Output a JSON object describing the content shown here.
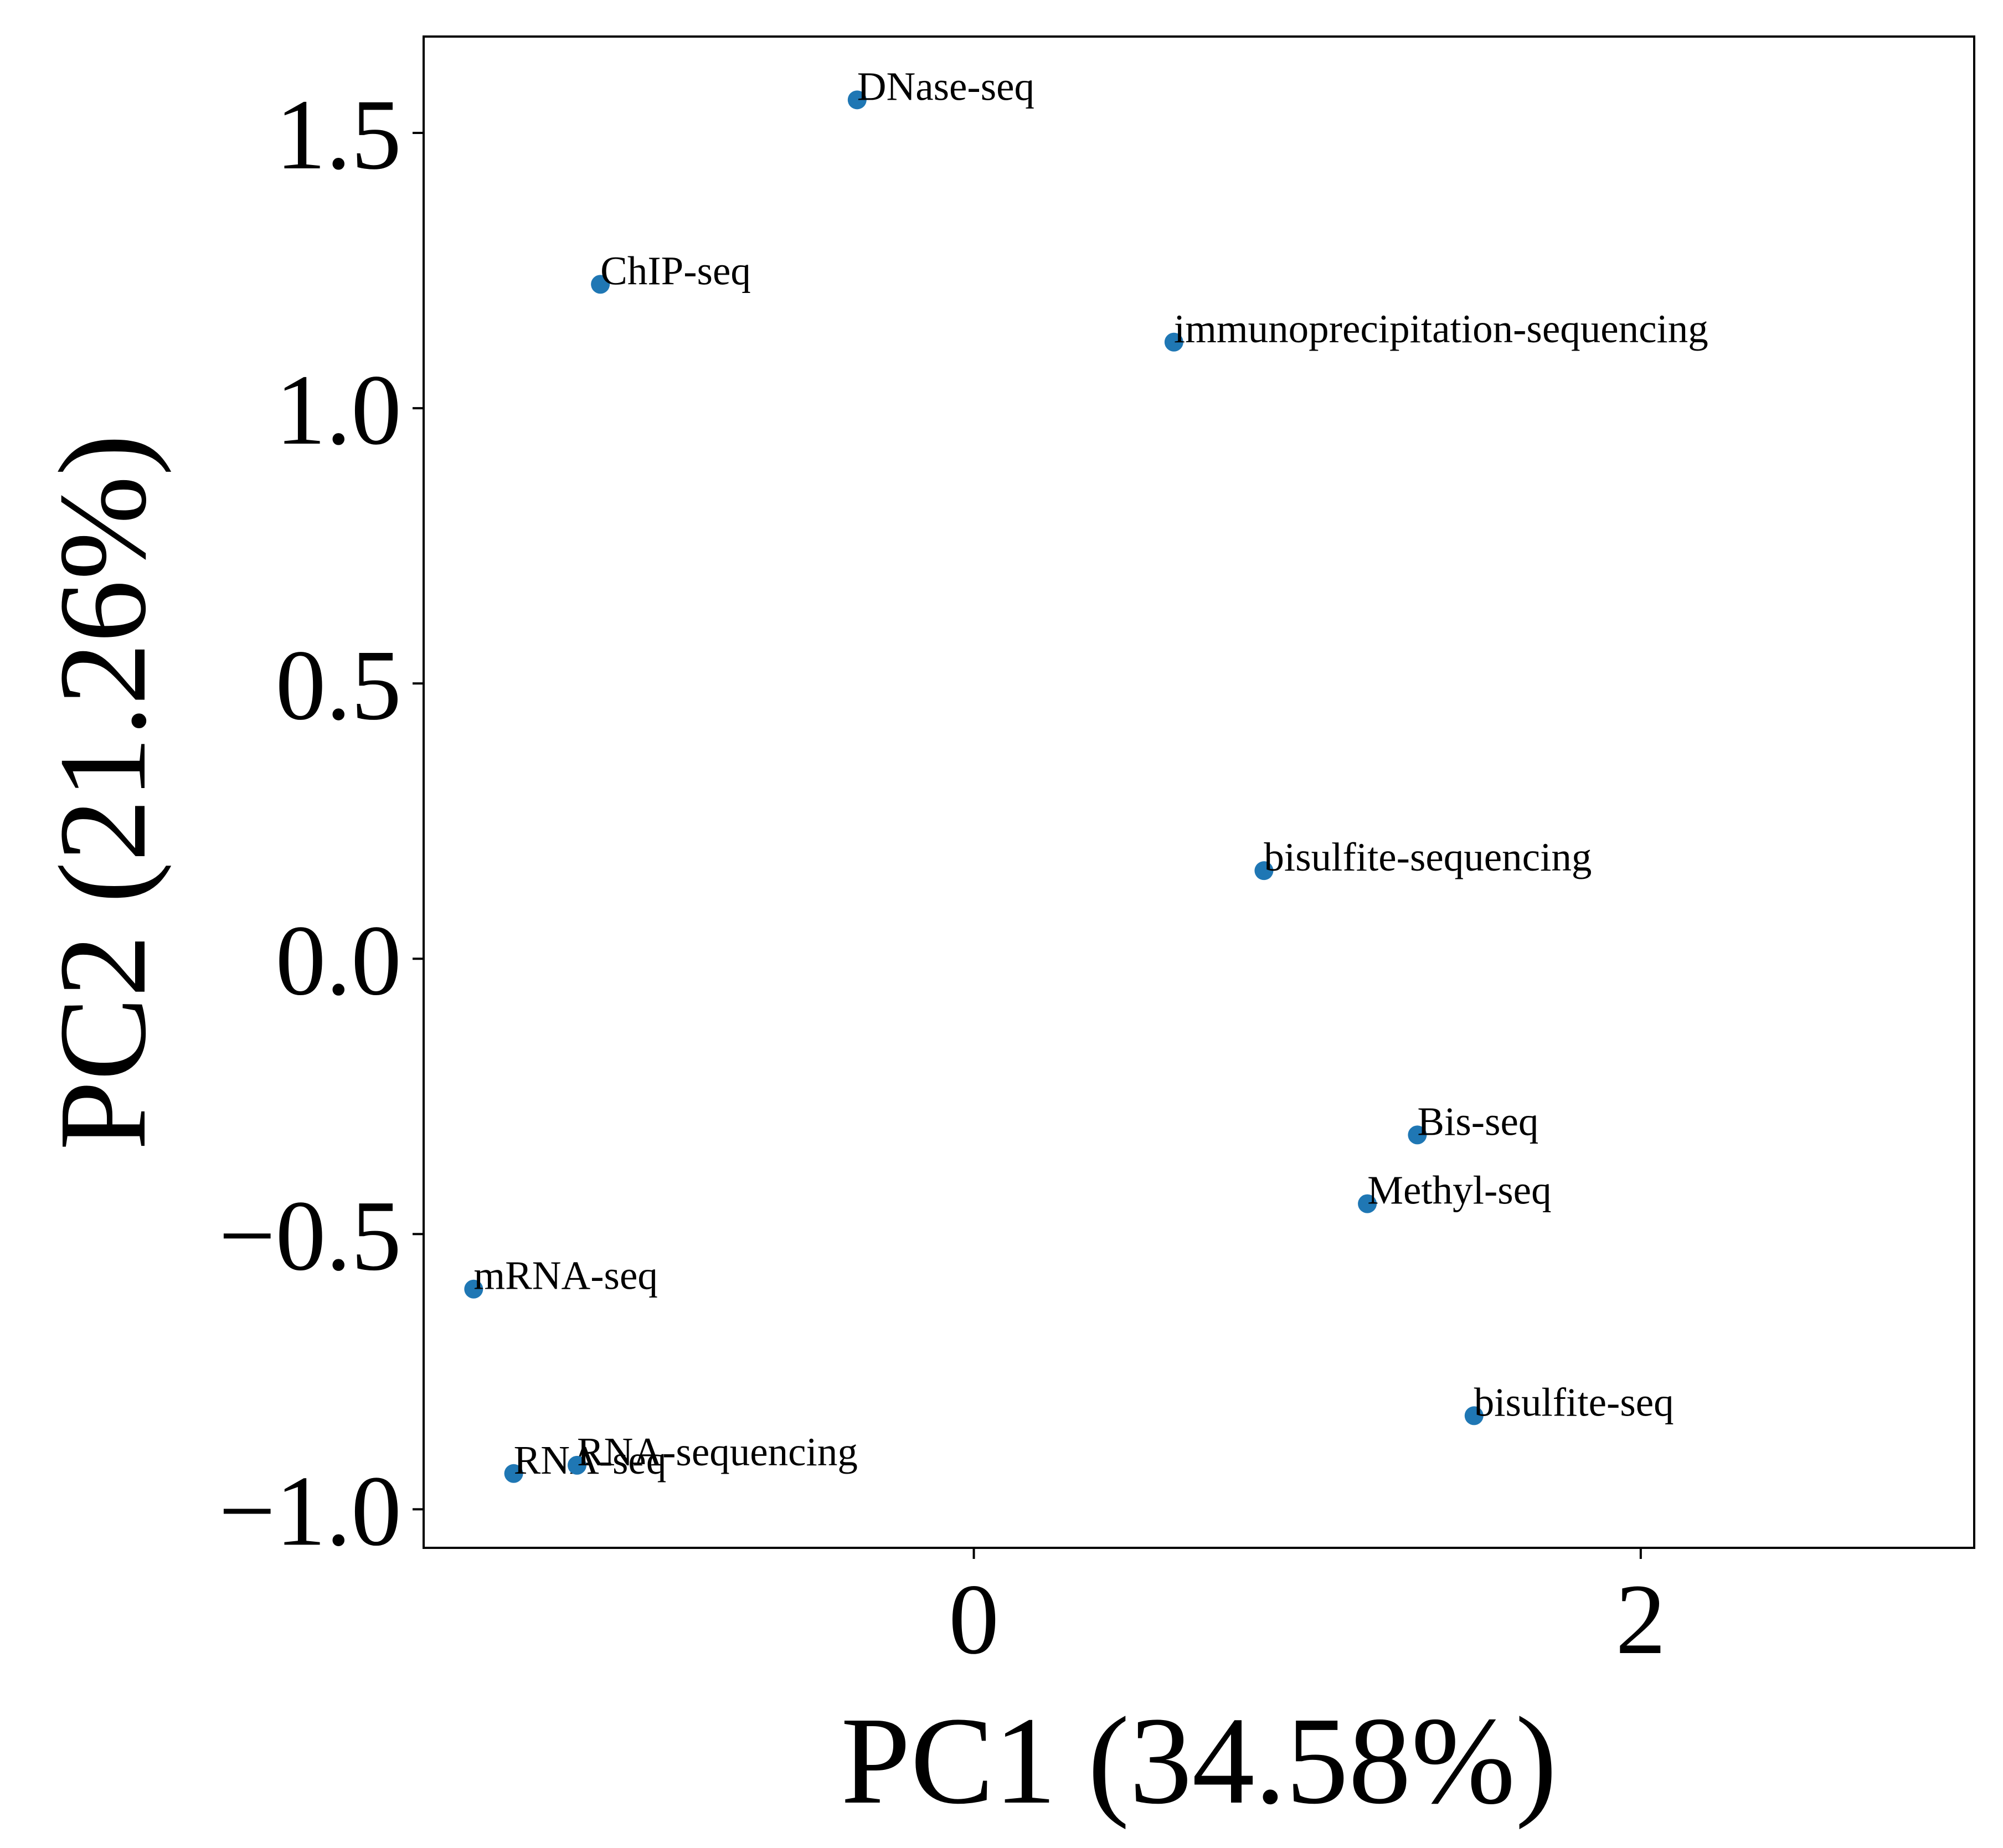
{
  "chart_data": {
    "type": "scatter",
    "xlabel": "PC1 (34.58%)",
    "ylabel": "PC2 (21.26%)",
    "xlim": [
      -1.65,
      3.0
    ],
    "ylim": [
      -1.07,
      1.675
    ],
    "x_ticks": [
      0,
      2
    ],
    "x_tick_labels": [
      "0",
      "2"
    ],
    "y_ticks": [
      -1.0,
      -0.5,
      0.0,
      0.5,
      1.0,
      1.5
    ],
    "y_tick_labels": [
      "−1.0",
      "−0.5",
      "0.0",
      "0.5",
      "1.0",
      "1.5"
    ],
    "grid": false,
    "marker_color": "#1f77b4",
    "points": [
      {
        "label": "DNase-seq",
        "x": -0.35,
        "y": 1.56
      },
      {
        "label": "ChIP-seq",
        "x": -1.12,
        "y": 1.225
      },
      {
        "label": "immunoprecipitation-sequencing",
        "x": 0.6,
        "y": 1.12
      },
      {
        "label": "bisulfite-sequencing",
        "x": 0.87,
        "y": 0.16
      },
      {
        "label": "Bis-seq",
        "x": 1.33,
        "y": -0.32
      },
      {
        "label": "Methyl-seq",
        "x": 1.18,
        "y": -0.445
      },
      {
        "label": "mRNA-seq",
        "x": -1.5,
        "y": -0.6
      },
      {
        "label": "bisulfite-seq",
        "x": 1.5,
        "y": -0.83
      },
      {
        "label": "RNA-seq",
        "x": -1.38,
        "y": -0.935
      },
      {
        "label": "RNA-sequencing",
        "x": -1.19,
        "y": -0.92
      }
    ]
  }
}
